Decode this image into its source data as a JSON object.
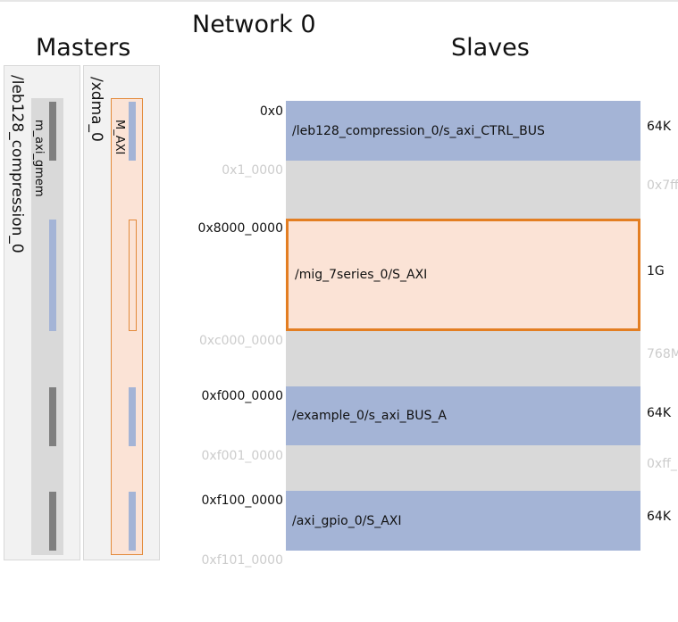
{
  "network_title": "Network 0",
  "masters_title": "Masters",
  "slaves_title": "Slaves",
  "masters": [
    {
      "name": "/leb128_compression_0",
      "interface": "m_axi_gmem",
      "segments": [
        "dark",
        "blue",
        "dark",
        "dark"
      ]
    },
    {
      "name": "/xdma_0",
      "interface": "M_AXI",
      "segments": [
        "blue",
        "outline",
        "blue",
        "blue"
      ]
    }
  ],
  "address_labels": [
    {
      "text": "0x0",
      "faded": false
    },
    {
      "text": "0x1_0000",
      "faded": true
    },
    {
      "text": "0x8000_0000",
      "faded": false
    },
    {
      "text": "0xc000_0000",
      "faded": true
    },
    {
      "text": "0xf000_0000",
      "faded": false
    },
    {
      "text": "0xf001_0000",
      "faded": true
    },
    {
      "text": "0xf100_0000",
      "faded": false
    },
    {
      "text": "0xf101_0000",
      "faded": true
    }
  ],
  "slaves": [
    {
      "kind": "slave",
      "name": "/leb128_compression_0/s_axi_CTRL_BUS",
      "size": "64K"
    },
    {
      "kind": "gap",
      "name": "",
      "size": "0x7ff"
    },
    {
      "kind": "selected",
      "name": "/mig_7series_0/S_AXI",
      "size": "1G"
    },
    {
      "kind": "gap",
      "name": "",
      "size": "768M"
    },
    {
      "kind": "slave",
      "name": "/example_0/s_axi_BUS_A",
      "size": "64K"
    },
    {
      "kind": "gap",
      "name": "",
      "size": "0xff_"
    },
    {
      "kind": "slave",
      "name": "/axi_gpio_0/S_AXI",
      "size": "64K"
    }
  ],
  "colors": {
    "slave_fill": "#a4b4d6",
    "gap_fill": "#d9d9d9",
    "selected_fill": "#fbe3d6",
    "selected_border": "#e37e22",
    "master_dark_segment": "#7f7f7f"
  }
}
